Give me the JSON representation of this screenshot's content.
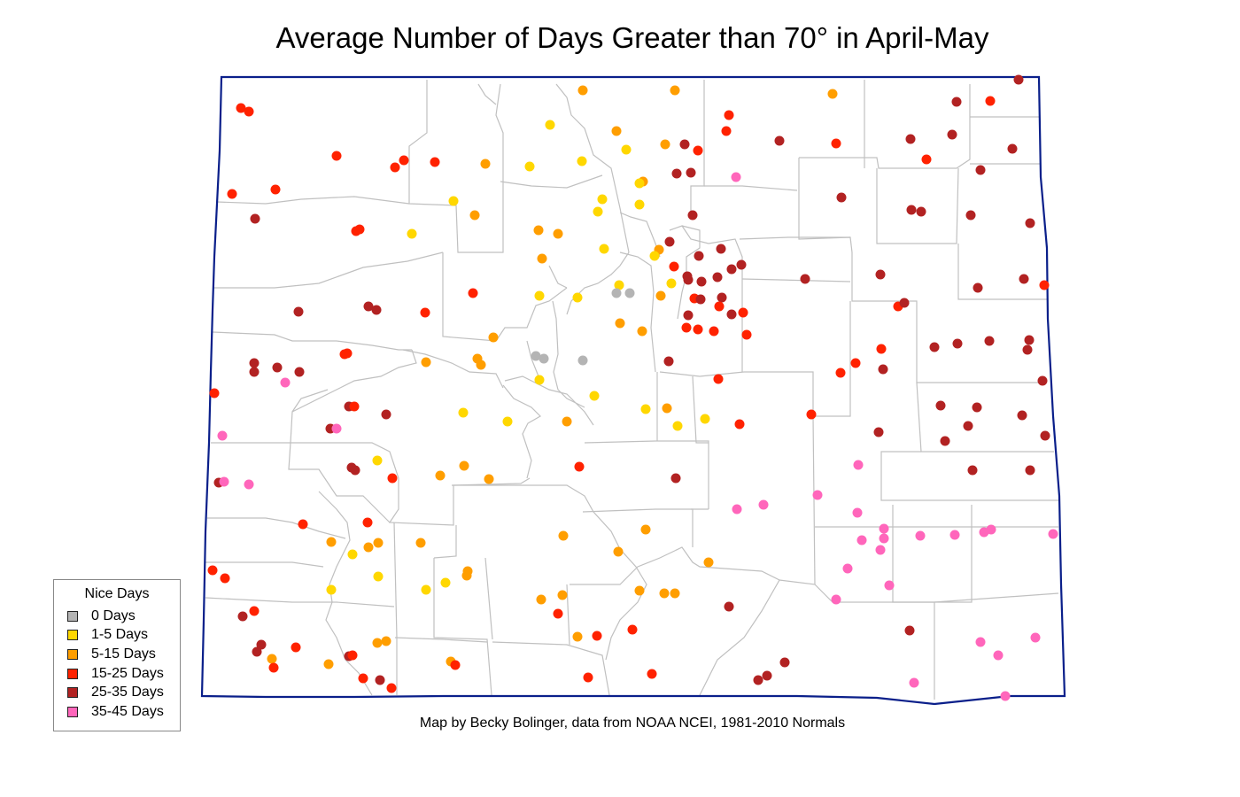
{
  "map": {
    "title": "Average Number of Days Greater than 70° in April-May",
    "credit": "Map by Becky Bolinger, data from NOAA NCEI, 1981-2010 Normals",
    "border_color": "#0a1f8a",
    "county_line_color": "#c0c0c0",
    "legend": {
      "title": "Nice Days",
      "items": [
        {
          "key": "c0",
          "label": "0 Days",
          "color": "#b4b4b4"
        },
        {
          "key": "c1",
          "label": "1-5 Days",
          "color": "#ffd700"
        },
        {
          "key": "c2",
          "label": "5-15 Days",
          "color": "#ff9e00"
        },
        {
          "key": "c3",
          "label": "15-25 Days",
          "color": "#ff2200"
        },
        {
          "key": "c4",
          "label": "25-35 Days",
          "color": "#b22222"
        },
        {
          "key": "c5",
          "label": "35-45 Days",
          "color": "#ff66bb"
        }
      ]
    }
  },
  "stations": [
    {
      "c": 3,
      "p": [
        272,
        122
      ]
    },
    {
      "c": 3,
      "p": [
        281,
        126
      ]
    },
    {
      "c": 3,
      "p": [
        380,
        176
      ]
    },
    {
      "c": 3,
      "p": [
        446,
        189
      ]
    },
    {
      "c": 3,
      "p": [
        456,
        181
      ]
    },
    {
      "c": 3,
      "p": [
        491,
        183
      ]
    },
    {
      "c": 3,
      "p": [
        262,
        219
      ]
    },
    {
      "c": 3,
      "p": [
        311,
        214
      ]
    },
    {
      "c": 4,
      "p": [
        288,
        247
      ]
    },
    {
      "c": 3,
      "p": [
        402,
        261
      ]
    },
    {
      "c": 3,
      "p": [
        406,
        259
      ]
    },
    {
      "c": 4,
      "p": [
        337,
        352
      ]
    },
    {
      "c": 4,
      "p": [
        416,
        346
      ]
    },
    {
      "c": 4,
      "p": [
        425,
        350
      ]
    },
    {
      "c": 3,
      "p": [
        480,
        353
      ]
    },
    {
      "c": 3,
      "p": [
        534,
        331
      ]
    },
    {
      "c": 3,
      "p": [
        389,
        400
      ]
    },
    {
      "c": 3,
      "p": [
        392,
        399
      ]
    },
    {
      "c": 4,
      "p": [
        287,
        410
      ]
    },
    {
      "c": 4,
      "p": [
        287,
        420
      ]
    },
    {
      "c": 4,
      "p": [
        313,
        415
      ]
    },
    {
      "c": 4,
      "p": [
        338,
        420
      ]
    },
    {
      "c": 5,
      "p": [
        322,
        432
      ]
    },
    {
      "c": 3,
      "p": [
        242,
        444
      ]
    },
    {
      "c": 4,
      "p": [
        394,
        459
      ]
    },
    {
      "c": 3,
      "p": [
        400,
        459
      ]
    },
    {
      "c": 4,
      "p": [
        436,
        468
      ]
    },
    {
      "c": 4,
      "p": [
        373,
        484
      ]
    },
    {
      "c": 5,
      "p": [
        380,
        484
      ]
    },
    {
      "c": 5,
      "p": [
        251,
        492
      ]
    },
    {
      "c": 1,
      "p": [
        426,
        520
      ]
    },
    {
      "c": 4,
      "p": [
        397,
        528
      ]
    },
    {
      "c": 4,
      "p": [
        401,
        531
      ]
    },
    {
      "c": 3,
      "p": [
        443,
        540
      ]
    },
    {
      "c": 4,
      "p": [
        247,
        545
      ]
    },
    {
      "c": 5,
      "p": [
        253,
        544
      ]
    },
    {
      "c": 5,
      "p": [
        281,
        547
      ]
    },
    {
      "c": 3,
      "p": [
        342,
        592
      ]
    },
    {
      "c": 3,
      "p": [
        415,
        590
      ]
    },
    {
      "c": 2,
      "p": [
        374,
        612
      ]
    },
    {
      "c": 2,
      "p": [
        416,
        618
      ]
    },
    {
      "c": 2,
      "p": [
        427,
        613
      ]
    },
    {
      "c": 1,
      "p": [
        398,
        626
      ]
    },
    {
      "c": 3,
      "p": [
        240,
        644
      ]
    },
    {
      "c": 3,
      "p": [
        254,
        653
      ]
    },
    {
      "c": 1,
      "p": [
        427,
        651
      ]
    },
    {
      "c": 1,
      "p": [
        374,
        666
      ]
    },
    {
      "c": 4,
      "p": [
        274,
        696
      ]
    },
    {
      "c": 3,
      "p": [
        287,
        690
      ]
    },
    {
      "c": 4,
      "p": [
        295,
        728
      ]
    },
    {
      "c": 4,
      "p": [
        290,
        736
      ]
    },
    {
      "c": 2,
      "p": [
        307,
        744
      ]
    },
    {
      "c": 3,
      "p": [
        309,
        754
      ]
    },
    {
      "c": 3,
      "p": [
        334,
        731
      ]
    },
    {
      "c": 2,
      "p": [
        371,
        750
      ]
    },
    {
      "c": 4,
      "p": [
        394,
        741
      ]
    },
    {
      "c": 3,
      "p": [
        398,
        740
      ]
    },
    {
      "c": 2,
      "p": [
        426,
        726
      ]
    },
    {
      "c": 2,
      "p": [
        436,
        724
      ]
    },
    {
      "c": 3,
      "p": [
        410,
        766
      ]
    },
    {
      "c": 4,
      "p": [
        429,
        768
      ]
    },
    {
      "c": 3,
      "p": [
        442,
        777
      ]
    },
    {
      "c": 2,
      "p": [
        658,
        102
      ]
    },
    {
      "c": 2,
      "p": [
        762,
        102
      ]
    },
    {
      "c": 1,
      "p": [
        621,
        141
      ]
    },
    {
      "c": 2,
      "p": [
        696,
        148
      ]
    },
    {
      "c": 1,
      "p": [
        707,
        169
      ]
    },
    {
      "c": 2,
      "p": [
        751,
        163
      ]
    },
    {
      "c": 1,
      "p": [
        598,
        188
      ]
    },
    {
      "c": 2,
      "p": [
        548,
        185
      ]
    },
    {
      "c": 1,
      "p": [
        657,
        182
      ]
    },
    {
      "c": 2,
      "p": [
        726,
        205
      ]
    },
    {
      "c": 1,
      "p": [
        722,
        207
      ]
    },
    {
      "c": 1,
      "p": [
        680,
        225
      ]
    },
    {
      "c": 1,
      "p": [
        675,
        239
      ]
    },
    {
      "c": 1,
      "p": [
        722,
        231
      ]
    },
    {
      "c": 1,
      "p": [
        512,
        227
      ]
    },
    {
      "c": 2,
      "p": [
        536,
        243
      ]
    },
    {
      "c": 1,
      "p": [
        465,
        264
      ]
    },
    {
      "c": 2,
      "p": [
        608,
        260
      ]
    },
    {
      "c": 2,
      "p": [
        630,
        264
      ]
    },
    {
      "c": 1,
      "p": [
        682,
        281
      ]
    },
    {
      "c": 2,
      "p": [
        612,
        292
      ]
    },
    {
      "c": 2,
      "p": [
        744,
        282
      ]
    },
    {
      "c": 1,
      "p": [
        739,
        289
      ]
    },
    {
      "c": 1,
      "p": [
        699,
        322
      ]
    },
    {
      "c": 0,
      "p": [
        696,
        331
      ]
    },
    {
      "c": 0,
      "p": [
        711,
        331
      ]
    },
    {
      "c": 1,
      "p": [
        609,
        334
      ]
    },
    {
      "c": 1,
      "p": [
        652,
        336
      ]
    },
    {
      "c": 2,
      "p": [
        746,
        334
      ]
    },
    {
      "c": 1,
      "p": [
        758,
        320
      ]
    },
    {
      "c": 2,
      "p": [
        700,
        365
      ]
    },
    {
      "c": 2,
      "p": [
        725,
        374
      ]
    },
    {
      "c": 2,
      "p": [
        557,
        381
      ]
    },
    {
      "c": 0,
      "p": [
        605,
        402
      ]
    },
    {
      "c": 0,
      "p": [
        614,
        405
      ]
    },
    {
      "c": 0,
      "p": [
        658,
        407
      ]
    },
    {
      "c": 2,
      "p": [
        481,
        409
      ]
    },
    {
      "c": 2,
      "p": [
        539,
        405
      ]
    },
    {
      "c": 2,
      "p": [
        543,
        412
      ]
    },
    {
      "c": 1,
      "p": [
        609,
        429
      ]
    },
    {
      "c": 1,
      "p": [
        671,
        447
      ]
    },
    {
      "c": 1,
      "p": [
        523,
        466
      ]
    },
    {
      "c": 1,
      "p": [
        573,
        476
      ]
    },
    {
      "c": 2,
      "p": [
        640,
        476
      ]
    },
    {
      "c": 1,
      "p": [
        729,
        462
      ]
    },
    {
      "c": 2,
      "p": [
        753,
        461
      ]
    },
    {
      "c": 1,
      "p": [
        765,
        481
      ]
    },
    {
      "c": 1,
      "p": [
        796,
        473
      ]
    },
    {
      "c": 3,
      "p": [
        654,
        527
      ]
    },
    {
      "c": 2,
      "p": [
        524,
        526
      ]
    },
    {
      "c": 2,
      "p": [
        497,
        537
      ]
    },
    {
      "c": 2,
      "p": [
        552,
        541
      ]
    },
    {
      "c": 4,
      "p": [
        763,
        540
      ]
    },
    {
      "c": 2,
      "p": [
        729,
        598
      ]
    },
    {
      "c": 2,
      "p": [
        636,
        605
      ]
    },
    {
      "c": 2,
      "p": [
        698,
        623
      ]
    },
    {
      "c": 2,
      "p": [
        800,
        635
      ]
    },
    {
      "c": 2,
      "p": [
        475,
        613
      ]
    },
    {
      "c": 2,
      "p": [
        528,
        645
      ]
    },
    {
      "c": 2,
      "p": [
        527,
        650
      ]
    },
    {
      "c": 1,
      "p": [
        503,
        658
      ]
    },
    {
      "c": 1,
      "p": [
        481,
        666
      ]
    },
    {
      "c": 2,
      "p": [
        611,
        677
      ]
    },
    {
      "c": 2,
      "p": [
        635,
        672
      ]
    },
    {
      "c": 3,
      "p": [
        630,
        693
      ]
    },
    {
      "c": 2,
      "p": [
        722,
        667
      ]
    },
    {
      "c": 2,
      "p": [
        750,
        670
      ]
    },
    {
      "c": 2,
      "p": [
        762,
        670
      ]
    },
    {
      "c": 2,
      "p": [
        652,
        719
      ]
    },
    {
      "c": 3,
      "p": [
        674,
        718
      ]
    },
    {
      "c": 3,
      "p": [
        714,
        711
      ]
    },
    {
      "c": 2,
      "p": [
        509,
        747
      ]
    },
    {
      "c": 3,
      "p": [
        514,
        751
      ]
    },
    {
      "c": 3,
      "p": [
        664,
        765
      ]
    },
    {
      "c": 3,
      "p": [
        736,
        761
      ]
    },
    {
      "c": 3,
      "p": [
        823,
        130
      ]
    },
    {
      "c": 3,
      "p": [
        820,
        148
      ]
    },
    {
      "c": 4,
      "p": [
        773,
        163
      ]
    },
    {
      "c": 3,
      "p": [
        788,
        170
      ]
    },
    {
      "c": 4,
      "p": [
        764,
        196
      ]
    },
    {
      "c": 4,
      "p": [
        780,
        195
      ]
    },
    {
      "c": 5,
      "p": [
        831,
        200
      ]
    },
    {
      "c": 4,
      "p": [
        782,
        243
      ]
    },
    {
      "c": 4,
      "p": [
        756,
        273
      ]
    },
    {
      "c": 4,
      "p": [
        789,
        289
      ]
    },
    {
      "c": 4,
      "p": [
        814,
        281
      ]
    },
    {
      "c": 4,
      "p": [
        837,
        299
      ]
    },
    {
      "c": 4,
      "p": [
        826,
        304
      ]
    },
    {
      "c": 3,
      "p": [
        761,
        301
      ]
    },
    {
      "c": 4,
      "p": [
        776,
        312
      ]
    },
    {
      "c": 4,
      "p": [
        777,
        316
      ]
    },
    {
      "c": 4,
      "p": [
        792,
        318
      ]
    },
    {
      "c": 4,
      "p": [
        810,
        313
      ]
    },
    {
      "c": 3,
      "p": [
        784,
        337
      ]
    },
    {
      "c": 4,
      "p": [
        791,
        338
      ]
    },
    {
      "c": 4,
      "p": [
        815,
        336
      ]
    },
    {
      "c": 3,
      "p": [
        812,
        346
      ]
    },
    {
      "c": 4,
      "p": [
        826,
        355
      ]
    },
    {
      "c": 3,
      "p": [
        839,
        353
      ]
    },
    {
      "c": 4,
      "p": [
        777,
        356
      ]
    },
    {
      "c": 3,
      "p": [
        775,
        370
      ]
    },
    {
      "c": 3,
      "p": [
        788,
        372
      ]
    },
    {
      "c": 3,
      "p": [
        806,
        374
      ]
    },
    {
      "c": 3,
      "p": [
        843,
        378
      ]
    },
    {
      "c": 4,
      "p": [
        755,
        408
      ]
    },
    {
      "c": 3,
      "p": [
        811,
        428
      ]
    },
    {
      "c": 3,
      "p": [
        835,
        479
      ]
    },
    {
      "c": 5,
      "p": [
        832,
        575
      ]
    },
    {
      "c": 5,
      "p": [
        862,
        570
      ]
    },
    {
      "c": 4,
      "p": [
        823,
        685
      ]
    },
    {
      "c": 4,
      "p": [
        886,
        748
      ]
    },
    {
      "c": 4,
      "p": [
        866,
        763
      ]
    },
    {
      "c": 4,
      "p": [
        856,
        768
      ]
    },
    {
      "c": 2,
      "p": [
        940,
        106
      ]
    },
    {
      "c": 4,
      "p": [
        1150,
        90
      ]
    },
    {
      "c": 3,
      "p": [
        1118,
        114
      ]
    },
    {
      "c": 4,
      "p": [
        1080,
        115
      ]
    },
    {
      "c": 4,
      "p": [
        880,
        159
      ]
    },
    {
      "c": 3,
      "p": [
        944,
        162
      ]
    },
    {
      "c": 4,
      "p": [
        1028,
        157
      ]
    },
    {
      "c": 4,
      "p": [
        1075,
        152
      ]
    },
    {
      "c": 3,
      "p": [
        1046,
        180
      ]
    },
    {
      "c": 4,
      "p": [
        1143,
        168
      ]
    },
    {
      "c": 4,
      "p": [
        1107,
        192
      ]
    },
    {
      "c": 4,
      "p": [
        950,
        223
      ]
    },
    {
      "c": 4,
      "p": [
        1029,
        237
      ]
    },
    {
      "c": 4,
      "p": [
        1040,
        239
      ]
    },
    {
      "c": 4,
      "p": [
        1096,
        243
      ]
    },
    {
      "c": 4,
      "p": [
        1163,
        252
      ]
    },
    {
      "c": 4,
      "p": [
        909,
        315
      ]
    },
    {
      "c": 4,
      "p": [
        994,
        310
      ]
    },
    {
      "c": 3,
      "p": [
        1014,
        346
      ]
    },
    {
      "c": 4,
      "p": [
        1021,
        342
      ]
    },
    {
      "c": 4,
      "p": [
        1104,
        325
      ]
    },
    {
      "c": 4,
      "p": [
        1156,
        315
      ]
    },
    {
      "c": 3,
      "p": [
        1179,
        322
      ]
    },
    {
      "c": 4,
      "p": [
        1055,
        392
      ]
    },
    {
      "c": 4,
      "p": [
        1081,
        388
      ]
    },
    {
      "c": 4,
      "p": [
        1117,
        385
      ]
    },
    {
      "c": 4,
      "p": [
        1162,
        384
      ]
    },
    {
      "c": 4,
      "p": [
        1160,
        395
      ]
    },
    {
      "c": 3,
      "p": [
        995,
        394
      ]
    },
    {
      "c": 3,
      "p": [
        966,
        410
      ]
    },
    {
      "c": 3,
      "p": [
        949,
        421
      ]
    },
    {
      "c": 4,
      "p": [
        997,
        417
      ]
    },
    {
      "c": 4,
      "p": [
        1177,
        430
      ]
    },
    {
      "c": 3,
      "p": [
        916,
        468
      ]
    },
    {
      "c": 4,
      "p": [
        1062,
        458
      ]
    },
    {
      "c": 4,
      "p": [
        1103,
        460
      ]
    },
    {
      "c": 4,
      "p": [
        1154,
        469
      ]
    },
    {
      "c": 4,
      "p": [
        1093,
        481
      ]
    },
    {
      "c": 4,
      "p": [
        992,
        488
      ]
    },
    {
      "c": 4,
      "p": [
        1067,
        498
      ]
    },
    {
      "c": 4,
      "p": [
        1180,
        492
      ]
    },
    {
      "c": 5,
      "p": [
        969,
        525
      ]
    },
    {
      "c": 4,
      "p": [
        1098,
        531
      ]
    },
    {
      "c": 4,
      "p": [
        1163,
        531
      ]
    },
    {
      "c": 5,
      "p": [
        923,
        559
      ]
    },
    {
      "c": 5,
      "p": [
        968,
        579
      ]
    },
    {
      "c": 5,
      "p": [
        998,
        597
      ]
    },
    {
      "c": 5,
      "p": [
        973,
        610
      ]
    },
    {
      "c": 5,
      "p": [
        998,
        608
      ]
    },
    {
      "c": 5,
      "p": [
        994,
        621
      ]
    },
    {
      "c": 5,
      "p": [
        1039,
        605
      ]
    },
    {
      "c": 5,
      "p": [
        1078,
        604
      ]
    },
    {
      "c": 5,
      "p": [
        1111,
        601
      ]
    },
    {
      "c": 5,
      "p": [
        1119,
        598
      ]
    },
    {
      "c": 5,
      "p": [
        1189,
        603
      ]
    },
    {
      "c": 5,
      "p": [
        957,
        642
      ]
    },
    {
      "c": 5,
      "p": [
        1004,
        661
      ]
    },
    {
      "c": 5,
      "p": [
        944,
        677
      ]
    },
    {
      "c": 4,
      "p": [
        1027,
        712
      ]
    },
    {
      "c": 5,
      "p": [
        1107,
        725
      ]
    },
    {
      "c": 5,
      "p": [
        1127,
        740
      ]
    },
    {
      "c": 5,
      "p": [
        1169,
        720
      ]
    },
    {
      "c": 5,
      "p": [
        1032,
        771
      ]
    },
    {
      "c": 5,
      "p": [
        1135,
        786
      ]
    }
  ]
}
